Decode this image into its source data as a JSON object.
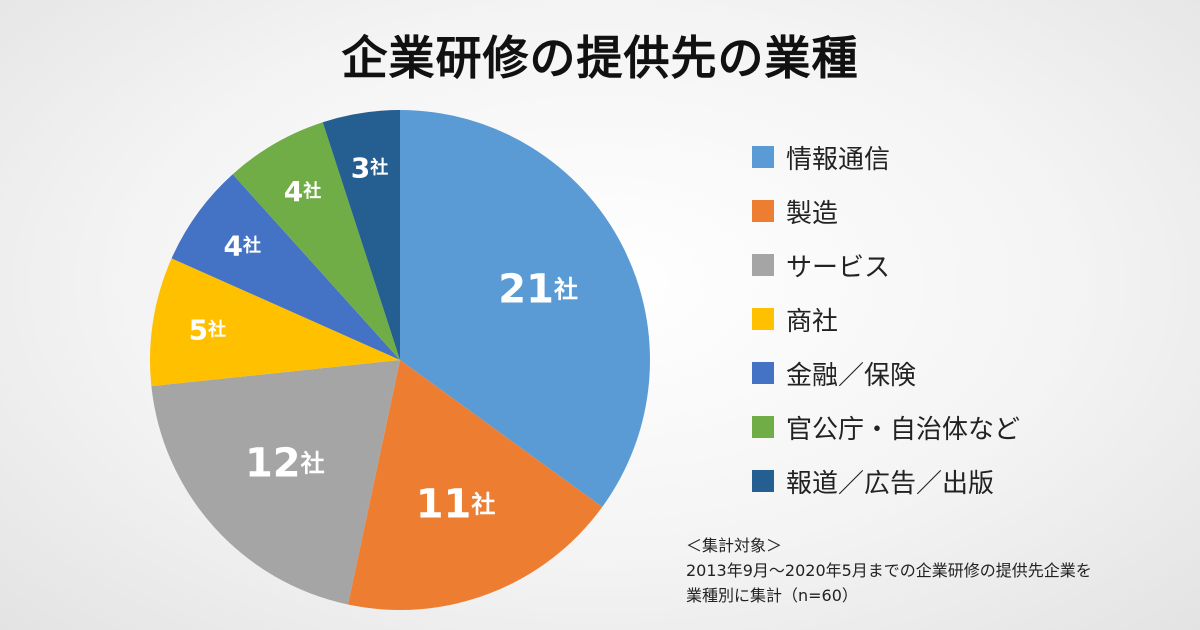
{
  "chart_data": {
    "type": "pie",
    "title": "企業研修の提供先の業種",
    "unit": "社",
    "categories": [
      "情報通信",
      "製造",
      "サービス",
      "商社",
      "金融／保険",
      "官公庁・自治体など",
      "報道／広告／出版"
    ],
    "values": [
      21,
      11,
      12,
      5,
      4,
      4,
      3
    ],
    "colors": [
      "#5b9bd5",
      "#ed7d31",
      "#a5a5a5",
      "#ffc000",
      "#4472c4",
      "#70ad47",
      "#255e91"
    ],
    "legend_position": "right"
  },
  "note": {
    "heading": "＜集計対象＞",
    "line1": "2013年9月～2020年5月までの企業研修の提供先企業を",
    "line2": "業種別に集計（n=60）"
  }
}
